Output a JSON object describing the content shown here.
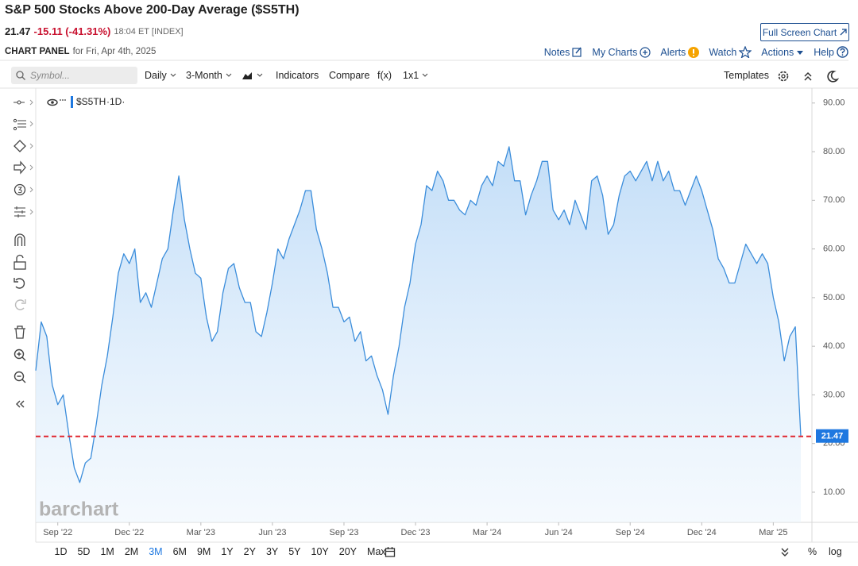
{
  "header": {
    "title": "S&P 500 Stocks Above 200-Day Average ($S5TH)",
    "price": "21.47",
    "change": "-15.11 (-41.31%)",
    "time": "18:04 ET [INDEX]",
    "fullscreen": "Full Screen Chart",
    "panel_label": "CHART PANEL",
    "panel_date": "for Fri, Apr 4th, 2025"
  },
  "nav": [
    "Notes",
    "My Charts",
    "Alerts",
    "Watch",
    "Actions",
    "Help"
  ],
  "toolbar": {
    "symbol_placeholder": "Symbol...",
    "items": [
      "Daily",
      "3-Month",
      "Indicators",
      "Compare",
      "f(x)",
      "1x1"
    ],
    "templates": "Templates"
  },
  "ranges": [
    "1D",
    "5D",
    "1M",
    "2M",
    "3M",
    "6M",
    "9M",
    "1Y",
    "2Y",
    "3Y",
    "5Y",
    "10Y",
    "20Y",
    "Max"
  ],
  "active_range": "3M",
  "bottom_right": [
    "%",
    "log"
  ],
  "watermark": "barchart",
  "chart_data": {
    "type": "line",
    "area": true,
    "categories": [
      null,
      null,
      null,
      null,
      "Sep '22",
      null,
      null,
      null,
      null,
      null,
      null,
      null,
      null,
      null,
      null,
      null,
      null,
      "Dec '22",
      null,
      null,
      null,
      null,
      null,
      null,
      null,
      null,
      null,
      null,
      null,
      null,
      "Mar '23",
      null,
      null,
      null,
      null,
      null,
      null,
      null,
      null,
      null,
      null,
      null,
      null,
      "Jun '23",
      null,
      null,
      null,
      null,
      null,
      null,
      null,
      null,
      null,
      null,
      null,
      null,
      "Sep '23",
      null,
      null,
      null,
      null,
      null,
      null,
      null,
      null,
      null,
      null,
      null,
      null,
      "Dec '23",
      null,
      null,
      null,
      null,
      null,
      null,
      null,
      null,
      null,
      null,
      null,
      null,
      "Mar '24",
      null,
      null,
      null,
      null,
      null,
      null,
      null,
      null,
      null,
      null,
      null,
      null,
      "Jun '24",
      null,
      null,
      null,
      null,
      null,
      null,
      null,
      null,
      null,
      null,
      null,
      null,
      "Sep '24",
      null,
      null,
      null,
      null,
      null,
      null,
      null,
      null,
      null,
      null,
      null,
      null,
      "Dec '24",
      null,
      null,
      null,
      null,
      null,
      null,
      null,
      null,
      null,
      null,
      null,
      null,
      "Mar '25",
      null,
      null,
      null,
      null,
      null
    ],
    "series": [
      {
        "name": "$S5TH",
        "interval": "·1D·",
        "color": "#3b8ddb",
        "values": [
          35,
          45,
          42,
          32,
          28,
          30,
          22,
          15,
          12,
          16,
          17,
          24,
          32,
          38,
          46,
          55,
          59,
          57,
          60,
          49,
          51,
          48,
          53,
          58,
          60,
          68,
          75,
          66,
          60,
          55,
          54,
          46,
          41,
          43,
          51,
          56,
          57,
          52,
          49,
          49,
          43,
          42,
          47,
          53,
          60,
          58,
          62,
          65,
          68,
          72,
          72,
          64,
          60,
          55,
          48,
          48,
          45,
          46,
          41,
          43,
          37,
          38,
          34,
          31,
          26,
          34,
          40,
          48,
          53,
          61,
          65,
          73,
          72,
          76,
          74,
          70,
          70,
          68,
          67,
          70,
          69,
          73,
          75,
          73,
          78,
          77,
          81,
          74,
          74,
          67,
          71,
          74,
          78,
          78,
          68,
          66,
          68,
          65,
          70,
          67,
          64,
          74,
          75,
          71,
          63,
          65,
          71,
          75,
          76,
          74,
          76,
          78,
          74,
          78,
          74,
          76,
          72,
          72,
          69,
          72,
          75,
          72,
          68,
          64,
          58,
          56,
          53,
          53,
          57,
          61,
          59,
          57,
          59,
          57,
          50,
          45,
          37,
          42,
          44,
          21.47
        ]
      }
    ],
    "ylim": [
      3.8,
      92.9
    ],
    "yticks": [
      {
        "value": 10,
        "label": "10.00"
      },
      {
        "value": 20,
        "label": "20.00"
      },
      {
        "value": 30,
        "label": "30.00"
      },
      {
        "value": 40,
        "label": "40.00"
      },
      {
        "value": 50,
        "label": "50.00"
      },
      {
        "value": 60,
        "label": "60.00"
      },
      {
        "value": 70,
        "label": "70.00"
      },
      {
        "value": 80,
        "label": "80.00"
      },
      {
        "value": 90,
        "label": "90.00"
      }
    ],
    "grid": false,
    "last_value_line": {
      "color": "#e0262f",
      "style": "dashed"
    },
    "last_value_box_color": "#1e78e0"
  }
}
